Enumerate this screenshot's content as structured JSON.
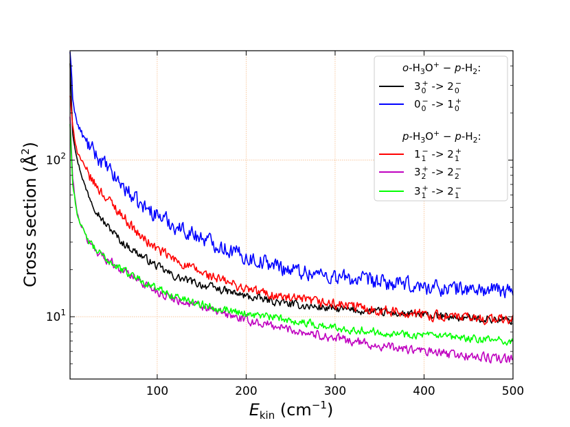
{
  "chart_data": {
    "type": "line",
    "title": "",
    "xlabel": {
      "italic": "E",
      "sub": "kin",
      "rest": " (cm",
      "sup": "−1",
      "close": ")"
    },
    "ylabel": {
      "text": "Cross section (Å",
      "sup": "2",
      "close": ")"
    },
    "xscale": "linear",
    "yscale": "log",
    "xlim": [
      2,
      500
    ],
    "ylim": [
      4,
      500
    ],
    "xticks": [
      100,
      200,
      300,
      400,
      500
    ],
    "xtick_labels": [
      "100",
      "200",
      "300",
      "400",
      "500"
    ],
    "yticks": [
      10,
      100
    ],
    "ytick_labels": [
      {
        "base": "10",
        "exp": "1"
      },
      {
        "base": "10",
        "exp": "2"
      }
    ],
    "grid": true,
    "legend_position": "top-right",
    "legend_groups": [
      {
        "title": {
          "pre": "o",
          "mid": "-H",
          "sub": "3",
          "mid2": "O",
          "sup": "+",
          "sep": " − ",
          "pre2": "p",
          "post": "-H",
          "sub2": "2",
          "end": ":"
        },
        "entries": [
          {
            "series": 0,
            "j": "3",
            "jsub": "0",
            "jsup": "+",
            "arrow": " -> ",
            "k": "2",
            "ksub": "0",
            "ksup": "−"
          },
          {
            "series": 1,
            "j": "0",
            "jsub": "0",
            "jsup": "−",
            "arrow": " -> ",
            "k": "1",
            "ksub": "0",
            "ksup": "+"
          }
        ]
      },
      {
        "title": {
          "pre": "p",
          "mid": "-H",
          "sub": "3",
          "mid2": "O",
          "sup": "+",
          "sep": " − ",
          "pre2": "p",
          "post": "-H",
          "sub2": "2",
          "end": ":"
        },
        "entries": [
          {
            "series": 2,
            "j": "1",
            "jsub": "1",
            "jsup": "−",
            "arrow": " -> ",
            "k": "2",
            "ksub": "1",
            "ksup": "+"
          },
          {
            "series": 3,
            "j": "3",
            "jsub": "2",
            "jsup": "+",
            "arrow": " -> ",
            "k": "2",
            "ksub": "2",
            "ksup": "−"
          },
          {
            "series": 4,
            "j": "3",
            "jsub": "1",
            "jsup": "+",
            "arrow": " -> ",
            "k": "2",
            "ksub": "1",
            "ksup": "−"
          }
        ]
      }
    ],
    "series": [
      {
        "name": "3_0^+ -> 2_0^-",
        "color": "#000000",
        "noise": 0.035,
        "x": [
          2,
          5,
          10,
          20,
          30,
          40,
          50,
          60,
          80,
          100,
          120,
          150,
          200,
          250,
          300,
          350,
          400,
          450,
          500
        ],
        "y": [
          420,
          150,
          100,
          65,
          50,
          40,
          35,
          30,
          25,
          21,
          18,
          16,
          13.5,
          12,
          11.2,
          10.7,
          10.2,
          9.8,
          9.5
        ]
      },
      {
        "name": "0_0^- -> 1_0^+",
        "color": "#0000ff",
        "noise": 0.07,
        "x": [
          2,
          5,
          10,
          20,
          30,
          40,
          50,
          60,
          80,
          100,
          120,
          150,
          200,
          250,
          300,
          350,
          400,
          450,
          500
        ],
        "y": [
          500,
          250,
          170,
          130,
          110,
          95,
          80,
          70,
          52,
          45,
          38,
          32,
          24,
          20,
          18,
          16.5,
          15.5,
          15,
          14.5
        ]
      },
      {
        "name": "1_1^- -> 2_1^+",
        "color": "#ff0000",
        "noise": 0.045,
        "x": [
          2,
          5,
          10,
          20,
          30,
          40,
          50,
          60,
          80,
          100,
          120,
          150,
          200,
          250,
          300,
          350,
          400,
          450,
          500
        ],
        "y": [
          260,
          160,
          115,
          85,
          70,
          60,
          52,
          45,
          33,
          27,
          23,
          19,
          15,
          13,
          12,
          11,
          10.3,
          9.8,
          9.5
        ]
      },
      {
        "name": "3_2^+ -> 2_2^-",
        "color": "#bf00bf",
        "noise": 0.04,
        "x": [
          2,
          5,
          10,
          20,
          30,
          40,
          50,
          60,
          80,
          100,
          120,
          150,
          200,
          250,
          300,
          350,
          400,
          450,
          500
        ],
        "y": [
          190,
          75,
          45,
          32,
          27,
          24,
          22,
          20,
          17,
          14.5,
          13,
          11.5,
          9.5,
          8.3,
          7.3,
          6.5,
          6,
          5.6,
          5.3
        ]
      },
      {
        "name": "3_1^+ -> 2_1^-",
        "color": "#00ff00",
        "noise": 0.035,
        "x": [
          2,
          5,
          10,
          20,
          30,
          40,
          50,
          60,
          80,
          100,
          120,
          150,
          200,
          250,
          300,
          350,
          400,
          450,
          500
        ],
        "y": [
          170,
          70,
          45,
          32,
          27,
          24,
          22,
          20,
          17.5,
          15,
          13.5,
          12,
          10.5,
          9.5,
          8.5,
          8,
          7.6,
          7.2,
          7
        ]
      }
    ]
  }
}
